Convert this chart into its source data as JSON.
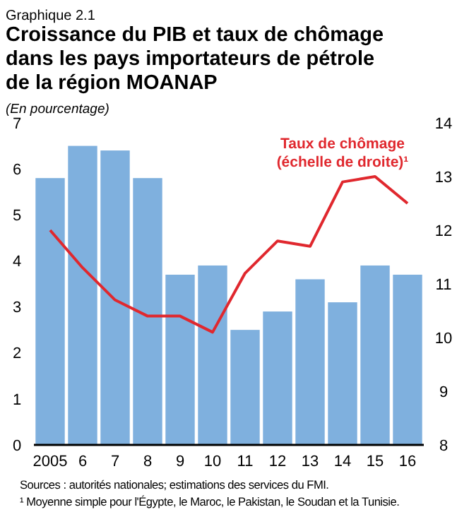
{
  "chart_data": {
    "type": "bar",
    "title": "Croissance du PIB et taux de chômage dans les pays importateurs de pétrole de la région MOANAP",
    "subtitle": "(En pourcentage)",
    "categories": [
      "2005",
      "6",
      "7",
      "8",
      "9",
      "10",
      "11",
      "12",
      "13",
      "14",
      "15",
      "16"
    ],
    "series": [
      {
        "color": "#7fb0de",
        "values": [
          5.8,
          6.5,
          6.4,
          5.8,
          3.7,
          3.9,
          2.5,
          2.9,
          3.6,
          3.1,
          3.9,
          3.7
        ]
      },
      {
        "type": "line",
        "name": "Taux de chômage (échelle de droite)¹",
        "axis": "y2",
        "color": "#e0282e",
        "values": [
          12.0,
          11.3,
          10.7,
          10.4,
          10.4,
          10.1,
          11.2,
          11.8,
          11.7,
          12.9,
          13.0,
          12.5
        ]
      }
    ],
    "ylim": [
      0,
      7
    ],
    "yticks": [
      0,
      1,
      2,
      3,
      4,
      5,
      6,
      7
    ],
    "y2lim": [
      8,
      14
    ],
    "y2ticks": [
      8,
      9,
      10,
      11,
      12,
      13,
      14
    ],
    "grid": false,
    "marker": "none",
    "line_style": "solid",
    "annotations": [
      "Graphique 2.1",
      "Sources : autorités nationales; estimations des services du FMI.",
      "¹ Moyenne simple pour l'Égypte, le Maroc, le Pakistan, le Soudan et la Tunisie."
    ]
  }
}
